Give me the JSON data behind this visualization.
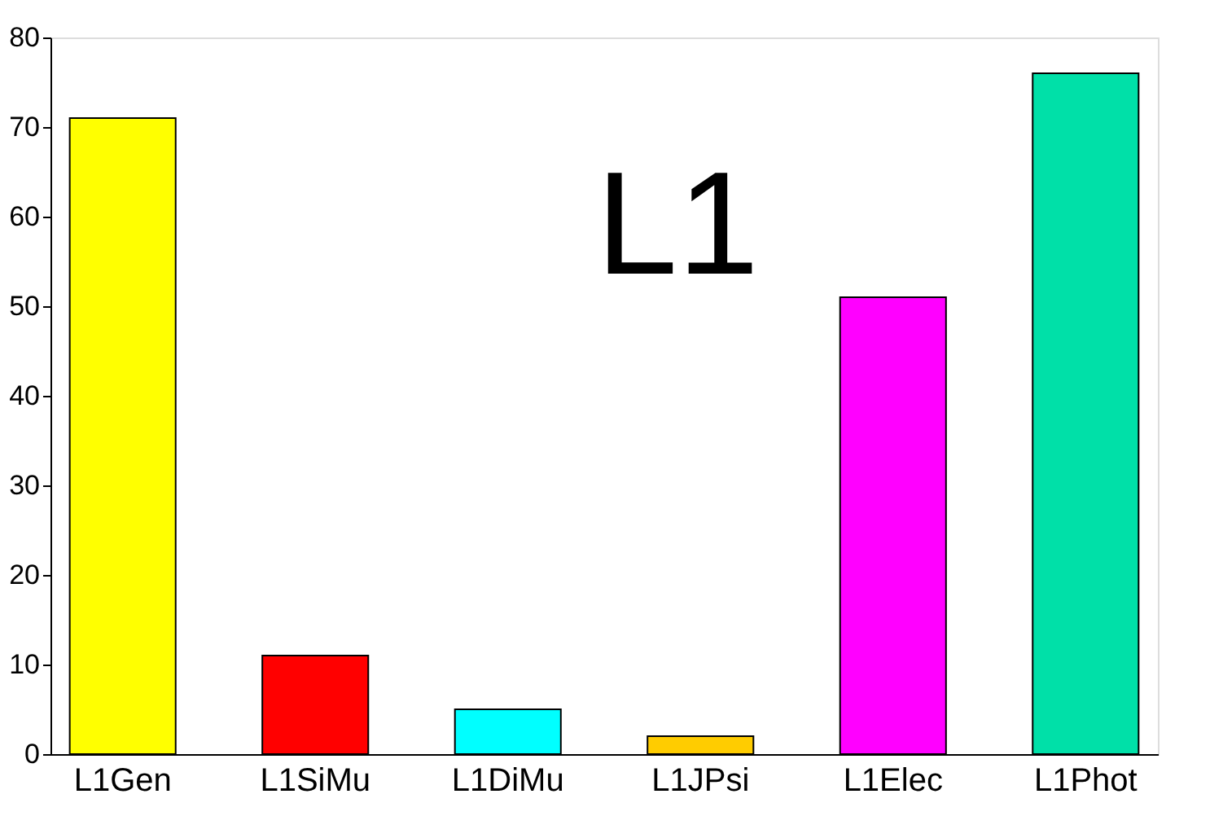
{
  "chart_data": {
    "type": "bar",
    "annotations": [
      "L1"
    ],
    "categories": [
      "L1Gen",
      "L1SiMu",
      "L1DiMu",
      "L1JPsi",
      "L1Elec",
      "L1Phot"
    ],
    "values": [
      71,
      11,
      5,
      2,
      51,
      76
    ],
    "colors": [
      "#ffff00",
      "#ff0000",
      "#00ffff",
      "#ffcc00",
      "#ff00ff",
      "#00e0a8"
    ],
    "ylim": [
      0,
      80
    ],
    "yticks": [
      0,
      10,
      20,
      30,
      40,
      50,
      60,
      70,
      80
    ],
    "grid": false,
    "legend": false
  }
}
